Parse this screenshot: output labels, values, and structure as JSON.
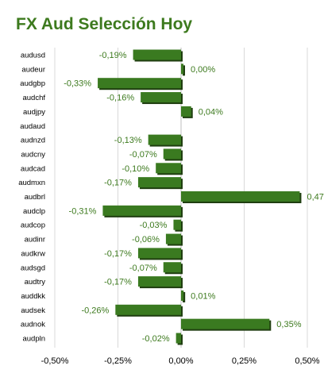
{
  "title": "FX Aud Selección Hoy",
  "colors": {
    "bar": "#3a7a20",
    "bar_shadow": "#1f3e10",
    "value_label": "#3d7a1e",
    "title": "#3d7a1e",
    "grid": "#d9d9d9"
  },
  "chart_data": {
    "type": "bar",
    "orientation": "horizontal",
    "title": "FX Aud Selección Hoy",
    "categories": [
      "audusd",
      "audeur",
      "audgbp",
      "audchf",
      "audjpy",
      "audaud",
      "audnzd",
      "audcny",
      "audcad",
      "audmxn",
      "audbrl",
      "audclp",
      "audcop",
      "audinr",
      "audkrw",
      "audsgd",
      "audtry",
      "auddkk",
      "audsek",
      "audnok",
      "audpln"
    ],
    "values": [
      -0.19,
      0.0,
      -0.33,
      -0.16,
      0.04,
      null,
      -0.13,
      -0.07,
      -0.1,
      -0.17,
      0.47,
      -0.31,
      -0.03,
      -0.06,
      -0.17,
      -0.07,
      -0.17,
      0.01,
      -0.26,
      0.35,
      -0.02
    ],
    "value_labels": [
      "-0,19%",
      "0,00%",
      "-0,33%",
      "-0,16%",
      "0,04%",
      "",
      "-0,13%",
      "-0,07%",
      "-0,10%",
      "-0,17%",
      "0,47",
      "-0,31%",
      "-0,03%",
      "-0,06%",
      "-0,17%",
      "-0,07%",
      "-0,17%",
      "0,01%",
      "-0,26%",
      "0,35%",
      "-0,02%"
    ],
    "x_ticks": [
      -0.5,
      -0.25,
      0.0,
      0.25,
      0.5
    ],
    "x_tick_labels": [
      "-0,50%",
      "-0,25%",
      "0,00%",
      "0,25%",
      "0,50%"
    ],
    "xlim": [
      -0.5,
      0.5
    ],
    "grid": true,
    "legend": false
  }
}
